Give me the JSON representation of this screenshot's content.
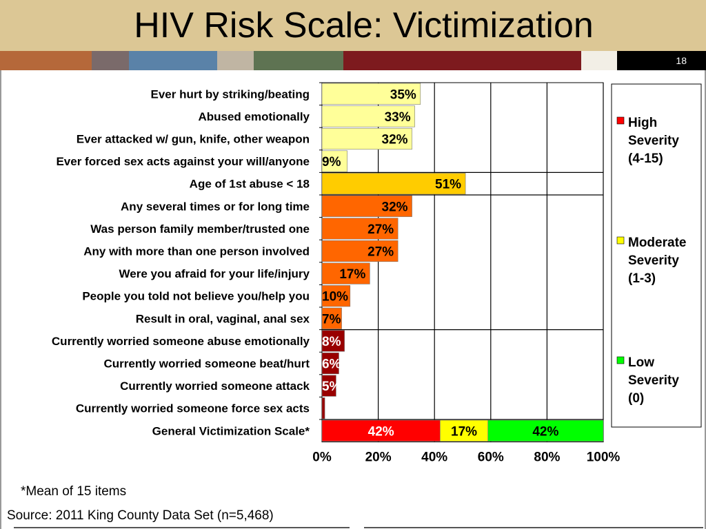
{
  "slide": {
    "title": "HIV Risk Scale: Victimization",
    "page_number": "18",
    "footnote": "*Mean of 15 items",
    "source": "Source: 2011 King County Data Set (n=5,468)",
    "strip_colors": [
      "#b5683a",
      "#7a6a6a",
      "#5a82a8",
      "#c0b5a3",
      "#5e7352",
      "#7d1a1e",
      "#f2efe6",
      "#000000"
    ]
  },
  "chart_data": {
    "type": "bar",
    "orientation": "horizontal",
    "stacked": true,
    "categories": [
      "Ever hurt by striking/beating",
      "Abused emotionally",
      "Ever attacked w/ gun, knife, other weapon",
      "Ever forced sex acts against your will/anyone",
      "Age of 1st abuse < 18",
      "Any several times or for long time",
      "Was person family member/trusted one",
      "Any with more than one person involved",
      "Were you afraid for your life/injury",
      "People you told not believe you/help you",
      "Result in oral, vaginal, anal sex",
      "Currently worried someone abuse emotionally",
      "Currently worried someone beat/hurt",
      "Currently worried someone attack",
      "Currently worried someone force sex acts",
      "General Victimization Scale*"
    ],
    "bars": [
      {
        "segments": [
          {
            "value": 35,
            "color": "#ffff99",
            "label": "35%"
          }
        ]
      },
      {
        "segments": [
          {
            "value": 33,
            "color": "#ffff99",
            "label": "33%"
          }
        ]
      },
      {
        "segments": [
          {
            "value": 32,
            "color": "#ffff99",
            "label": "32%"
          }
        ]
      },
      {
        "segments": [
          {
            "value": 9,
            "color": "#ffff99",
            "label": "9%"
          }
        ]
      },
      {
        "segments": [
          {
            "value": 51,
            "color": "#ffcc00",
            "label": "51%"
          }
        ]
      },
      {
        "segments": [
          {
            "value": 32,
            "color": "#ff6600",
            "label": "32%"
          }
        ]
      },
      {
        "segments": [
          {
            "value": 27,
            "color": "#ff6600",
            "label": "27%"
          }
        ]
      },
      {
        "segments": [
          {
            "value": 27,
            "color": "#ff6600",
            "label": "27%"
          }
        ]
      },
      {
        "segments": [
          {
            "value": 17,
            "color": "#ff6600",
            "label": "17%"
          }
        ]
      },
      {
        "segments": [
          {
            "value": 10,
            "color": "#ff6600",
            "label": "10%"
          }
        ]
      },
      {
        "segments": [
          {
            "value": 7,
            "color": "#ff6600",
            "label": "7%"
          }
        ]
      },
      {
        "segments": [
          {
            "value": 8,
            "color": "#990000",
            "label": "8%"
          }
        ]
      },
      {
        "segments": [
          {
            "value": 6,
            "color": "#990000",
            "label": "6%"
          }
        ]
      },
      {
        "segments": [
          {
            "value": 5,
            "color": "#990000",
            "label": "5%"
          }
        ]
      },
      {
        "segments": [
          {
            "value": 1,
            "color": "#990000",
            "label": "1%"
          }
        ]
      },
      {
        "segments": [
          {
            "value": 42,
            "color": "#ff0000",
            "label": "42%"
          },
          {
            "value": 17,
            "color": "#ffff00",
            "label": "17%"
          },
          {
            "value": 42,
            "color": "#00ff00",
            "label": "42%"
          }
        ]
      }
    ],
    "xlim": [
      0,
      100
    ],
    "x_ticks": [
      "0%",
      "20%",
      "40%",
      "60%",
      "80%",
      "100%"
    ],
    "grid": true,
    "legend_position": "right",
    "legend": [
      {
        "name": "High Severity (4-15)",
        "color": "#ff0000"
      },
      {
        "name": "Moderate Severity (1-3)",
        "color": "#ffff00"
      },
      {
        "name": "Low Severity (0)",
        "color": "#00ff00"
      }
    ]
  }
}
